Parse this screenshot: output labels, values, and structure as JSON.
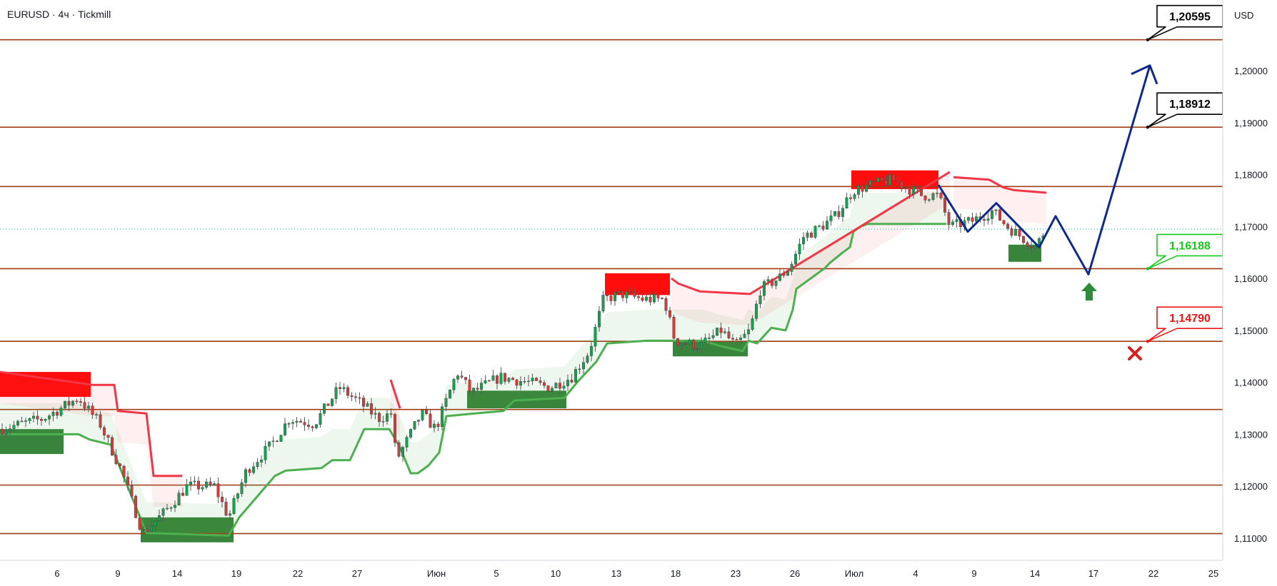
{
  "header": {
    "title": "EURUSD · 4ч · Tickmill",
    "currency": "USD"
  },
  "colors": {
    "level_line": "#a03c14",
    "level_tag": "#b3420d",
    "bull_zone": "#2e7d32",
    "bear_zone": "#ff0000",
    "trend_up": "#4caf50",
    "trend_down": "#f23645",
    "projection": "#0d2a8c",
    "target_text": "#000000",
    "entry_text": "#18c818",
    "stop_text": "#f01414"
  },
  "chart_data": {
    "type": "candlestick",
    "symbol": "EURUSD",
    "timeframe": "4ч",
    "ylim": [
      1.1045,
      1.2125
    ],
    "price_ticks": [
      "1,20000",
      "1,19000",
      "1,18000",
      "1,17000",
      "1,16000",
      "1,15000",
      "1,14000",
      "1,13000",
      "1,12000",
      "1,11000"
    ],
    "price_tick_values": [
      1.2,
      1.19,
      1.18,
      1.17,
      1.16,
      1.15,
      1.14,
      1.13,
      1.12,
      1.11
    ],
    "time_labels": [
      "6",
      "9",
      "14",
      "19",
      "22",
      "27",
      "Июн",
      "5",
      "10",
      "13",
      "18",
      "23",
      "26",
      "Июл",
      "4",
      "9",
      "14",
      "17",
      "22",
      "25"
    ],
    "levels": [
      {
        "value": 1.20595,
        "label": "1,20595"
      },
      {
        "value": 1.18912,
        "label": "1,18912"
      },
      {
        "value": 1.1777,
        "label": "1,17770"
      },
      {
        "value": 1.16188,
        "label": "1,16188"
      },
      {
        "value": 1.1479,
        "label": "1,14790"
      },
      {
        "value": 1.13477,
        "label": "1,13477"
      },
      {
        "value": 1.12022,
        "label": "1,12022"
      },
      {
        "value": 1.11088,
        "label": "1,11088"
      }
    ],
    "current_price": {
      "value": 1.1695,
      "label": "1,16950"
    },
    "callouts": [
      {
        "label": "1,20595",
        "value": 1.20595,
        "role": "target"
      },
      {
        "label": "1,18912",
        "value": 1.18912,
        "role": "target"
      },
      {
        "label": "1,16188",
        "value": 1.16188,
        "role": "entry"
      },
      {
        "label": "1,14790",
        "value": 1.1479,
        "role": "stop"
      }
    ],
    "zones": [
      {
        "kind": "bear",
        "t0": 0,
        "t1": 127,
        "top": 1.142,
        "bottom": 1.1372
      },
      {
        "kind": "bull",
        "t0": 0,
        "t1": 89,
        "top": 1.131,
        "bottom": 1.1262
      },
      {
        "kind": "bull",
        "t0": 197,
        "t1": 327,
        "top": 1.114,
        "bottom": 1.1092
      },
      {
        "kind": "bull",
        "t0": 654,
        "t1": 793,
        "top": 1.1384,
        "bottom": 1.135
      },
      {
        "kind": "bear",
        "t0": 847,
        "t1": 938,
        "top": 1.161,
        "bottom": 1.1568
      },
      {
        "kind": "bull",
        "t0": 942,
        "t1": 1047,
        "top": 1.1478,
        "bottom": 1.145
      },
      {
        "kind": "bear",
        "t0": 1192,
        "t1": 1314,
        "top": 1.1808,
        "bottom": 1.1772
      },
      {
        "kind": "bull",
        "t0": 1412,
        "t1": 1458,
        "top": 1.1665,
        "bottom": 1.1632
      }
    ],
    "trend_up": [
      [
        0,
        1.13
      ],
      [
        90,
        1.13
      ],
      [
        110,
        1.13
      ],
      [
        125,
        1.129
      ],
      [
        155,
        1.128
      ],
      [
        205,
        1.111
      ],
      [
        320,
        1.1105
      ],
      [
        335,
        1.114
      ],
      [
        385,
        1.122
      ],
      [
        400,
        1.123
      ],
      [
        450,
        1.1235
      ],
      [
        465,
        1.125
      ],
      [
        490,
        1.125
      ],
      [
        510,
        1.131
      ],
      [
        545,
        1.131
      ],
      [
        560,
        1.1275
      ],
      [
        575,
        1.1225
      ],
      [
        585,
        1.1225
      ],
      [
        600,
        1.124
      ],
      [
        615,
        1.1265
      ],
      [
        625,
        1.1335
      ],
      [
        665,
        1.134
      ],
      [
        705,
        1.1345
      ],
      [
        720,
        1.1365
      ],
      [
        790,
        1.137
      ],
      [
        808,
        1.14
      ],
      [
        835,
        1.144
      ],
      [
        850,
        1.1475
      ],
      [
        905,
        1.148
      ],
      [
        945,
        1.148
      ],
      [
        985,
        1.148
      ],
      [
        1008,
        1.147
      ],
      [
        1040,
        1.146
      ],
      [
        1048,
        1.148
      ],
      [
        1060,
        1.1475
      ],
      [
        1080,
        1.1505
      ],
      [
        1100,
        1.15
      ],
      [
        1110,
        1.154
      ],
      [
        1115,
        1.158
      ],
      [
        1155,
        1.162
      ],
      [
        1162,
        1.163
      ],
      [
        1180,
        1.165
      ],
      [
        1190,
        1.166
      ],
      [
        1195,
        1.169
      ],
      [
        1205,
        1.17
      ],
      [
        1215,
        1.1705
      ],
      [
        1325,
        1.1705
      ]
    ],
    "trend_down": [
      [
        0,
        1.142
      ],
      [
        130,
        1.1395
      ],
      [
        160,
        1.1395
      ],
      [
        165,
        1.1345
      ],
      [
        205,
        1.134
      ],
      [
        215,
        1.122
      ],
      [
        255,
        1.122
      ],
      [
        547,
        1.1405
      ],
      [
        560,
        1.135
      ],
      [
        940,
        1.16
      ],
      [
        950,
        1.159
      ],
      [
        980,
        1.1575
      ],
      [
        1050,
        1.157
      ],
      [
        1330,
        1.1805
      ],
      [
        1335,
        1.1795
      ],
      [
        1385,
        1.179
      ],
      [
        1405,
        1.1775
      ],
      [
        1420,
        1.177
      ],
      [
        1465,
        1.1765
      ]
    ],
    "projection_path": [
      [
        1314,
        1.178
      ],
      [
        1355,
        1.169
      ],
      [
        1395,
        1.1745
      ],
      [
        1455,
        1.166
      ],
      [
        1478,
        1.172
      ],
      [
        1524,
        1.1608
      ],
      [
        1610,
        1.201
      ]
    ]
  }
}
